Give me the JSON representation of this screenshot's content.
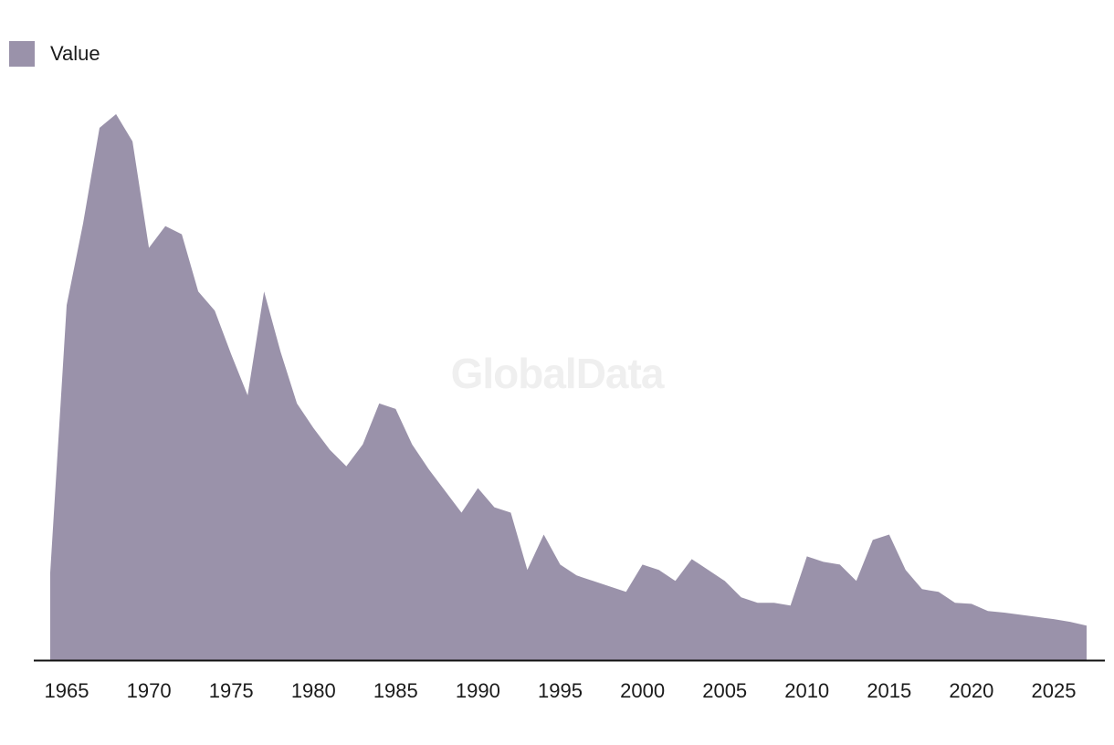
{
  "legend": {
    "label": "Value"
  },
  "watermark": "GlobalData",
  "colors": {
    "area": "#9a92aa",
    "axis": "#111111",
    "text": "#1b1b1b"
  },
  "chart_data": {
    "type": "area",
    "title": "",
    "xlabel": "",
    "ylabel": "",
    "ylim": [
      0,
      100
    ],
    "xlim": [
      1964,
      2028
    ],
    "grid": false,
    "legend_position": "top-left",
    "x_ticks": [
      1965,
      1970,
      1975,
      1980,
      1985,
      1990,
      1995,
      2000,
      2005,
      2010,
      2015,
      2020,
      2025
    ],
    "series": [
      {
        "name": "Value",
        "x": [
          1964,
          1965,
          1966,
          1967,
          1968,
          1969,
          1970,
          1971,
          1972,
          1973,
          1974,
          1975,
          1976,
          1977,
          1978,
          1979,
          1980,
          1981,
          1982,
          1983,
          1984,
          1985,
          1986,
          1987,
          1988,
          1989,
          1990,
          1991,
          1992,
          1993,
          1994,
          1995,
          1996,
          1997,
          1998,
          1999,
          2000,
          2001,
          2002,
          2003,
          2004,
          2005,
          2006,
          2007,
          2008,
          2009,
          2010,
          2011,
          2012,
          2013,
          2014,
          2015,
          2016,
          2017,
          2018,
          2019,
          2020,
          2021,
          2022,
          2023,
          2024,
          2025,
          2026,
          2027
        ],
        "values": [
          16,
          65,
          80,
          97.5,
          100,
          95,
          75.5,
          79.5,
          78,
          67.5,
          64,
          56,
          48.5,
          67.5,
          56.5,
          47,
          42.5,
          38.5,
          35.5,
          39.5,
          47,
          46,
          39.5,
          35,
          31,
          27,
          31.5,
          28,
          27,
          16.5,
          23,
          17.5,
          15.5,
          14.5,
          13.5,
          12.5,
          17.5,
          16.5,
          14.5,
          18.5,
          16.5,
          14.5,
          11.5,
          10.5,
          10.5,
          10,
          19,
          18,
          17.5,
          14.5,
          22,
          23,
          16.5,
          13,
          12.5,
          10.5,
          10.3,
          9,
          8.7,
          8.3,
          7.9,
          7.5,
          7,
          6.3
        ]
      }
    ]
  }
}
